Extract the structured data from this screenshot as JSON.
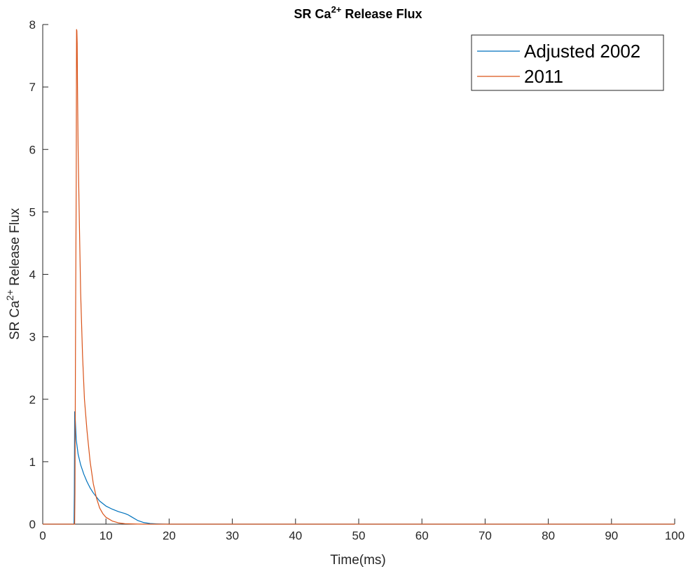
{
  "chart_data": {
    "type": "line",
    "title": {
      "prefix": "SR Ca",
      "sup": "2+",
      "suffix": " Release Flux"
    },
    "xlabel": "Time(ms)",
    "ylabel": {
      "prefix": "SR Ca",
      "sup": "2+",
      "suffix": " Release Flux"
    },
    "xlim": [
      0,
      100
    ],
    "ylim": [
      0,
      8
    ],
    "xticks": [
      0,
      10,
      20,
      30,
      40,
      50,
      60,
      70,
      80,
      90,
      100
    ],
    "yticks": [
      0,
      1,
      2,
      3,
      4,
      5,
      6,
      7,
      8
    ],
    "grid": false,
    "legend_position": "top-right",
    "series": [
      {
        "name": "Adjusted 2002",
        "color": "#0072BD",
        "x": [
          0,
          4.95,
          5.0,
          5.05,
          5.1,
          5.3,
          5.6,
          6.0,
          6.5,
          7.0,
          7.5,
          8.0,
          9.0,
          10.0,
          11.0,
          12.0,
          13.0,
          13.5,
          14.0,
          15.0,
          16.0,
          17.0,
          18.0,
          19.0,
          20.0,
          100
        ],
        "y": [
          0,
          0,
          0.5,
          1.8,
          1.78,
          1.35,
          1.12,
          0.95,
          0.8,
          0.68,
          0.58,
          0.5,
          0.37,
          0.29,
          0.24,
          0.2,
          0.17,
          0.15,
          0.12,
          0.06,
          0.025,
          0.01,
          0.005,
          0.002,
          0.0,
          0.0
        ]
      },
      {
        "name": "2011",
        "color": "#D95319",
        "x": [
          0,
          5.05,
          5.1,
          5.2,
          5.3,
          5.35,
          5.4,
          5.45,
          5.5,
          5.6,
          5.8,
          6.0,
          6.3,
          6.6,
          7.0,
          7.5,
          8.0,
          8.5,
          9.0,
          9.5,
          10.0,
          11.0,
          12.0,
          13.0,
          14.0,
          15.0,
          16.0,
          100
        ],
        "y": [
          0,
          0,
          0.5,
          3.3,
          5.5,
          7.92,
          7.9,
          7.7,
          7.0,
          6.0,
          4.8,
          3.7,
          2.7,
          2.0,
          1.5,
          1.0,
          0.65,
          0.42,
          0.26,
          0.17,
          0.11,
          0.05,
          0.02,
          0.008,
          0.004,
          0.001,
          0.0,
          0.0
        ]
      }
    ]
  }
}
